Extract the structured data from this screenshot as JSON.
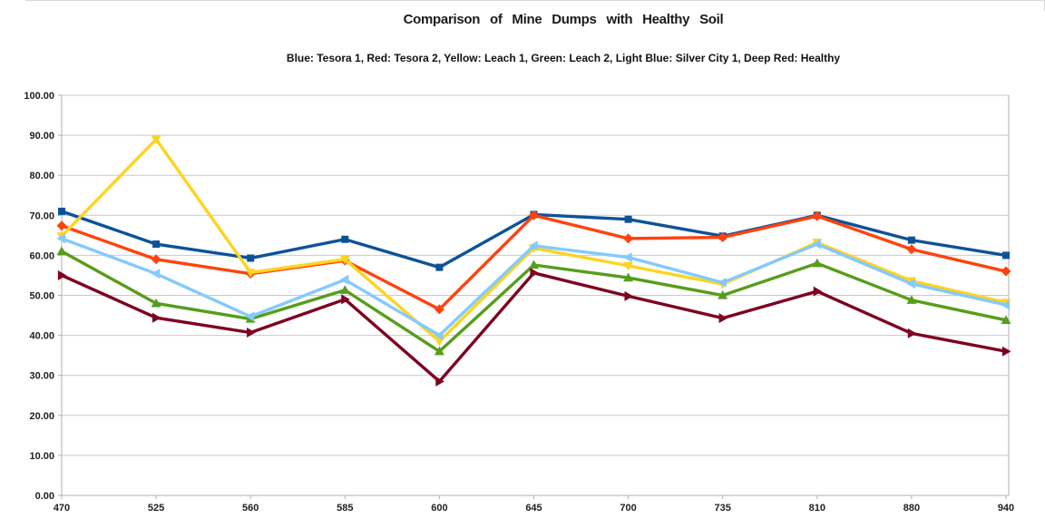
{
  "page": {
    "background": "#ffffff"
  },
  "chart_data": {
    "type": "line",
    "title": "Comparison of Mine Dumps with Healthy Soil",
    "subtitle": "Blue: Tesora 1, Red: Tesora 2, Yellow: Leach 1, Green: Leach 2, Light Blue: Silver City 1, Deep Red: Healthy",
    "categories": [
      "470",
      "525",
      "560",
      "585",
      "600",
      "645",
      "700",
      "735",
      "810",
      "880",
      "940"
    ],
    "xlabel": "",
    "ylabel": "",
    "ylim": [
      0,
      100
    ],
    "y_tick_step": 10,
    "y_ticks": [
      "0.00",
      "10.00",
      "20.00",
      "30.00",
      "40.00",
      "50.00",
      "60.00",
      "70.00",
      "80.00",
      "90.00",
      "100.00"
    ],
    "grid": "horizontal",
    "legend_position": "none (series identified in subtitle text)",
    "grid_color": "#c9c9c9",
    "axis_color": "#b0b0b0",
    "series": [
      {
        "name": "Tesora 1",
        "color": "#0D5298",
        "marker": "square",
        "values": [
          71.0,
          62.8,
          59.3,
          64.0,
          57.0,
          70.2,
          69.0,
          64.8,
          70.0,
          63.8,
          60.0
        ]
      },
      {
        "name": "Tesora 2",
        "color": "#FF420E",
        "marker": "diamond",
        "values": [
          67.4,
          59.0,
          55.4,
          58.7,
          46.5,
          70.0,
          64.2,
          64.5,
          69.8,
          61.5,
          56.0
        ]
      },
      {
        "name": "Leach 1",
        "color": "#FFD320",
        "marker": "triangle-down",
        "values": [
          64.8,
          89.0,
          55.7,
          59.0,
          38.5,
          61.8,
          57.4,
          52.8,
          63.2,
          53.6,
          48.2
        ]
      },
      {
        "name": "Leach 2",
        "color": "#579D1C",
        "marker": "triangle-up",
        "values": [
          61.0,
          48.0,
          44.1,
          51.3,
          36.0,
          57.6,
          54.4,
          50.0,
          58.0,
          48.8,
          43.8
        ]
      },
      {
        "name": "Silver City 1",
        "color": "#83CAFF",
        "marker": "triangle-left",
        "values": [
          64.2,
          55.4,
          44.7,
          53.9,
          40.0,
          62.4,
          59.5,
          53.2,
          62.8,
          52.9,
          47.6
        ]
      },
      {
        "name": "Healthy",
        "color": "#7E0021",
        "marker": "triangle-right",
        "values": [
          55.0,
          44.4,
          40.7,
          49.0,
          28.5,
          55.6,
          49.8,
          44.3,
          51.0,
          40.5,
          36.0
        ]
      }
    ]
  }
}
